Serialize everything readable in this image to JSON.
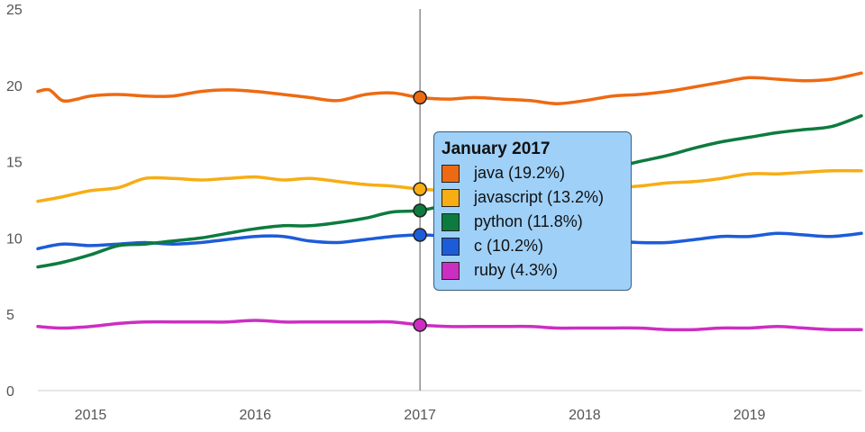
{
  "chart_data": {
    "type": "line",
    "title": "",
    "xlabel": "",
    "ylabel": "",
    "ylim": [
      0,
      25
    ],
    "yticks": [
      0,
      5,
      10,
      15,
      20,
      25
    ],
    "xlim": [
      2014.68,
      2019.68
    ],
    "xticks": [
      2015,
      2016,
      2017,
      2018,
      2019
    ],
    "grid": false,
    "highlight_x": 2017.0,
    "series": [
      {
        "name": "java",
        "color": "#ee6a12",
        "x": [
          2014.68,
          2014.75,
          2014.83,
          2014.92,
          2015.0,
          2015.17,
          2015.33,
          2015.5,
          2015.67,
          2015.83,
          2016.0,
          2016.17,
          2016.33,
          2016.5,
          2016.67,
          2016.83,
          2017.0,
          2017.17,
          2017.33,
          2017.5,
          2017.67,
          2017.83,
          2018.0,
          2018.17,
          2018.33,
          2018.5,
          2018.67,
          2018.83,
          2019.0,
          2019.17,
          2019.33,
          2019.5,
          2019.68
        ],
        "values": [
          19.6,
          19.7,
          19.0,
          19.1,
          19.3,
          19.4,
          19.3,
          19.3,
          19.6,
          19.7,
          19.6,
          19.4,
          19.2,
          19.0,
          19.4,
          19.5,
          19.2,
          19.1,
          19.2,
          19.1,
          19.0,
          18.8,
          19.0,
          19.3,
          19.4,
          19.6,
          19.9,
          20.2,
          20.5,
          20.4,
          20.3,
          20.4,
          20.8
        ]
      },
      {
        "name": "javascript",
        "color": "#f7ad14",
        "x": [
          2014.68,
          2014.83,
          2015.0,
          2015.17,
          2015.33,
          2015.5,
          2015.67,
          2015.83,
          2016.0,
          2016.17,
          2016.33,
          2016.5,
          2016.67,
          2016.83,
          2017.0,
          2017.17,
          2017.33,
          2017.5,
          2017.67,
          2017.83,
          2018.0,
          2018.17,
          2018.33,
          2018.5,
          2018.67,
          2018.83,
          2019.0,
          2019.17,
          2019.33,
          2019.5,
          2019.68
        ],
        "values": [
          12.4,
          12.7,
          13.1,
          13.3,
          13.9,
          13.9,
          13.8,
          13.9,
          14.0,
          13.8,
          13.9,
          13.7,
          13.5,
          13.4,
          13.2,
          13.1,
          13.0,
          13.0,
          13.0,
          13.2,
          13.2,
          13.3,
          13.4,
          13.6,
          13.7,
          13.9,
          14.2,
          14.2,
          14.3,
          14.4,
          14.4
        ]
      },
      {
        "name": "python",
        "color": "#0d7b3e",
        "x": [
          2014.68,
          2014.83,
          2015.0,
          2015.17,
          2015.33,
          2015.5,
          2015.67,
          2015.83,
          2016.0,
          2016.17,
          2016.33,
          2016.5,
          2016.67,
          2016.83,
          2017.0,
          2017.17,
          2017.33,
          2017.5,
          2017.67,
          2017.83,
          2018.0,
          2018.17,
          2018.33,
          2018.5,
          2018.67,
          2018.83,
          2019.0,
          2019.17,
          2019.33,
          2019.5,
          2019.68
        ],
        "values": [
          8.1,
          8.4,
          8.9,
          9.5,
          9.6,
          9.8,
          10.0,
          10.3,
          10.6,
          10.8,
          10.8,
          11.0,
          11.3,
          11.7,
          11.8,
          12.2,
          12.6,
          13.0,
          13.4,
          13.8,
          14.2,
          14.6,
          15.0,
          15.4,
          15.9,
          16.3,
          16.6,
          16.9,
          17.1,
          17.3,
          18.0
        ]
      },
      {
        "name": "c",
        "color": "#1d5cd9",
        "x": [
          2014.68,
          2014.83,
          2015.0,
          2015.17,
          2015.33,
          2015.5,
          2015.67,
          2015.83,
          2016.0,
          2016.17,
          2016.33,
          2016.5,
          2016.67,
          2016.83,
          2017.0,
          2017.17,
          2017.33,
          2017.5,
          2017.67,
          2017.83,
          2018.0,
          2018.17,
          2018.33,
          2018.5,
          2018.67,
          2018.83,
          2019.0,
          2019.17,
          2019.33,
          2019.5,
          2019.68
        ],
        "values": [
          9.3,
          9.6,
          9.5,
          9.6,
          9.7,
          9.6,
          9.7,
          9.9,
          10.1,
          10.1,
          9.8,
          9.7,
          9.9,
          10.1,
          10.2,
          10.1,
          10.0,
          10.0,
          9.9,
          9.9,
          9.8,
          9.8,
          9.7,
          9.7,
          9.9,
          10.1,
          10.1,
          10.3,
          10.2,
          10.1,
          10.3
        ]
      },
      {
        "name": "ruby",
        "color": "#cc2ec2",
        "x": [
          2014.68,
          2014.83,
          2015.0,
          2015.17,
          2015.33,
          2015.5,
          2015.67,
          2015.83,
          2016.0,
          2016.17,
          2016.33,
          2016.5,
          2016.67,
          2016.83,
          2017.0,
          2017.17,
          2017.33,
          2017.5,
          2017.67,
          2017.83,
          2018.0,
          2018.17,
          2018.33,
          2018.5,
          2018.67,
          2018.83,
          2019.0,
          2019.17,
          2019.33,
          2019.5,
          2019.68
        ],
        "values": [
          4.2,
          4.1,
          4.2,
          4.4,
          4.5,
          4.5,
          4.5,
          4.5,
          4.6,
          4.5,
          4.5,
          4.5,
          4.5,
          4.5,
          4.3,
          4.2,
          4.2,
          4.2,
          4.2,
          4.1,
          4.1,
          4.1,
          4.1,
          4.0,
          4.0,
          4.1,
          4.1,
          4.2,
          4.1,
          4.0,
          4.0
        ]
      }
    ],
    "tooltip": {
      "title": "January 2017",
      "rows": [
        {
          "label": "java (19.2%)",
          "value": 19.2
        },
        {
          "label": "javascript (13.2%)",
          "value": 13.2
        },
        {
          "label": "python (11.8%)",
          "value": 11.8
        },
        {
          "label": "c (10.2%)",
          "value": 10.2
        },
        {
          "label": "ruby (4.3%)",
          "value": 4.3
        }
      ]
    }
  }
}
